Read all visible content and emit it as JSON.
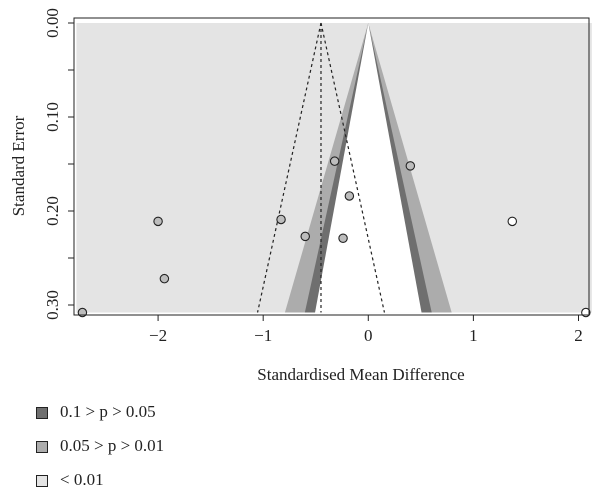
{
  "chart_data": {
    "type": "scatter",
    "xlabel": "Standardised Mean Difference",
    "ylabel": "Standard Error",
    "xlim": [
      -2.8,
      2.1
    ],
    "ylim": [
      0.31,
      0.0
    ],
    "y_reversed": true,
    "xticks": [
      -2,
      -1,
      0,
      1,
      2
    ],
    "xtick_labels": [
      "−2",
      "−1",
      "0",
      "1",
      "2"
    ],
    "yticks": [
      0.0,
      0.1,
      0.2,
      0.3
    ],
    "ytick_labels": [
      "0.00",
      "0.10",
      "0.20",
      "0.30"
    ],
    "pooled_estimate": -0.45,
    "contour_levels": [
      {
        "label": "0.1 > p > 0.05",
        "color": "#6f6f6f"
      },
      {
        "label": "0.05 > p > 0.01",
        "color": "#acacac"
      },
      {
        "label": "< 0.01",
        "color": "#e4e4e4"
      }
    ],
    "points": [
      {
        "x": -2.72,
        "y": 0.308,
        "fill": "#bdbdbd"
      },
      {
        "x": -2.0,
        "y": 0.211,
        "fill": "#bdbdbd"
      },
      {
        "x": -1.94,
        "y": 0.272,
        "fill": "#bdbdbd"
      },
      {
        "x": -0.83,
        "y": 0.209,
        "fill": "#bdbdbd"
      },
      {
        "x": -0.6,
        "y": 0.227,
        "fill": "#bdbdbd"
      },
      {
        "x": -0.32,
        "y": 0.147,
        "fill": "#bdbdbd"
      },
      {
        "x": -0.24,
        "y": 0.229,
        "fill": "#bdbdbd"
      },
      {
        "x": -0.18,
        "y": 0.184,
        "fill": "#bdbdbd"
      },
      {
        "x": 0.4,
        "y": 0.152,
        "fill": "#bdbdbd"
      },
      {
        "x": 1.37,
        "y": 0.211,
        "fill": "#ffffff"
      },
      {
        "x": 2.07,
        "y": 0.308,
        "fill": "#ffffff"
      }
    ],
    "grid": false,
    "legend_position": "bottom-left"
  }
}
